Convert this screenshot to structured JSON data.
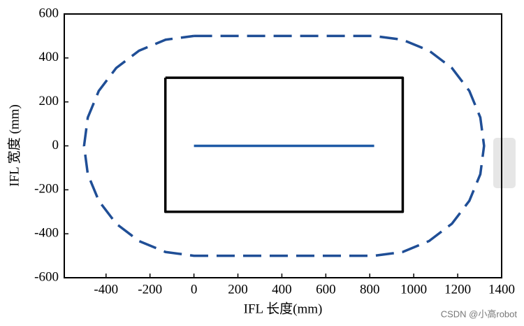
{
  "chart_data": {
    "type": "line",
    "xlabel": "IFL 长度(mm)",
    "ylabel": "IFL 宽度 (mm)",
    "watermark": "CSDN @小高robot",
    "xlim": [
      -590,
      1400
    ],
    "ylim": [
      -600,
      600
    ],
    "xticks": [
      -400,
      -200,
      0,
      200,
      400,
      600,
      800,
      1000,
      1200,
      1400
    ],
    "yticks": [
      -600,
      -400,
      -200,
      0,
      200,
      400,
      600
    ],
    "grid": false,
    "series": [
      {
        "color": "#1f4e96",
        "linestyle": "dashed",
        "x": [
          0,
          820,
          949,
          1070,
          1174,
          1253,
          1303,
          1320,
          1303,
          1253,
          1174,
          1070,
          949,
          820,
          0,
          -129,
          -250,
          -354,
          -433,
          -483,
          -500,
          -483,
          -433,
          -354,
          -250,
          -129,
          0
        ],
        "y": [
          500,
          500,
          483,
          433,
          354,
          250,
          129,
          0,
          -129,
          -250,
          -354,
          -433,
          -483,
          -500,
          -500,
          -483,
          -433,
          -354,
          -250,
          -129,
          0,
          129,
          250,
          354,
          433,
          483,
          500
        ]
      },
      {
        "color": "#000000",
        "linestyle": "solid",
        "x": [
          -130,
          950,
          950,
          -130,
          -130
        ],
        "y": [
          310,
          310,
          -300,
          -300,
          310
        ]
      },
      {
        "color": "#1f5aa6",
        "linestyle": "solid",
        "x": [
          0,
          820
        ],
        "y": [
          0,
          0
        ]
      }
    ]
  }
}
